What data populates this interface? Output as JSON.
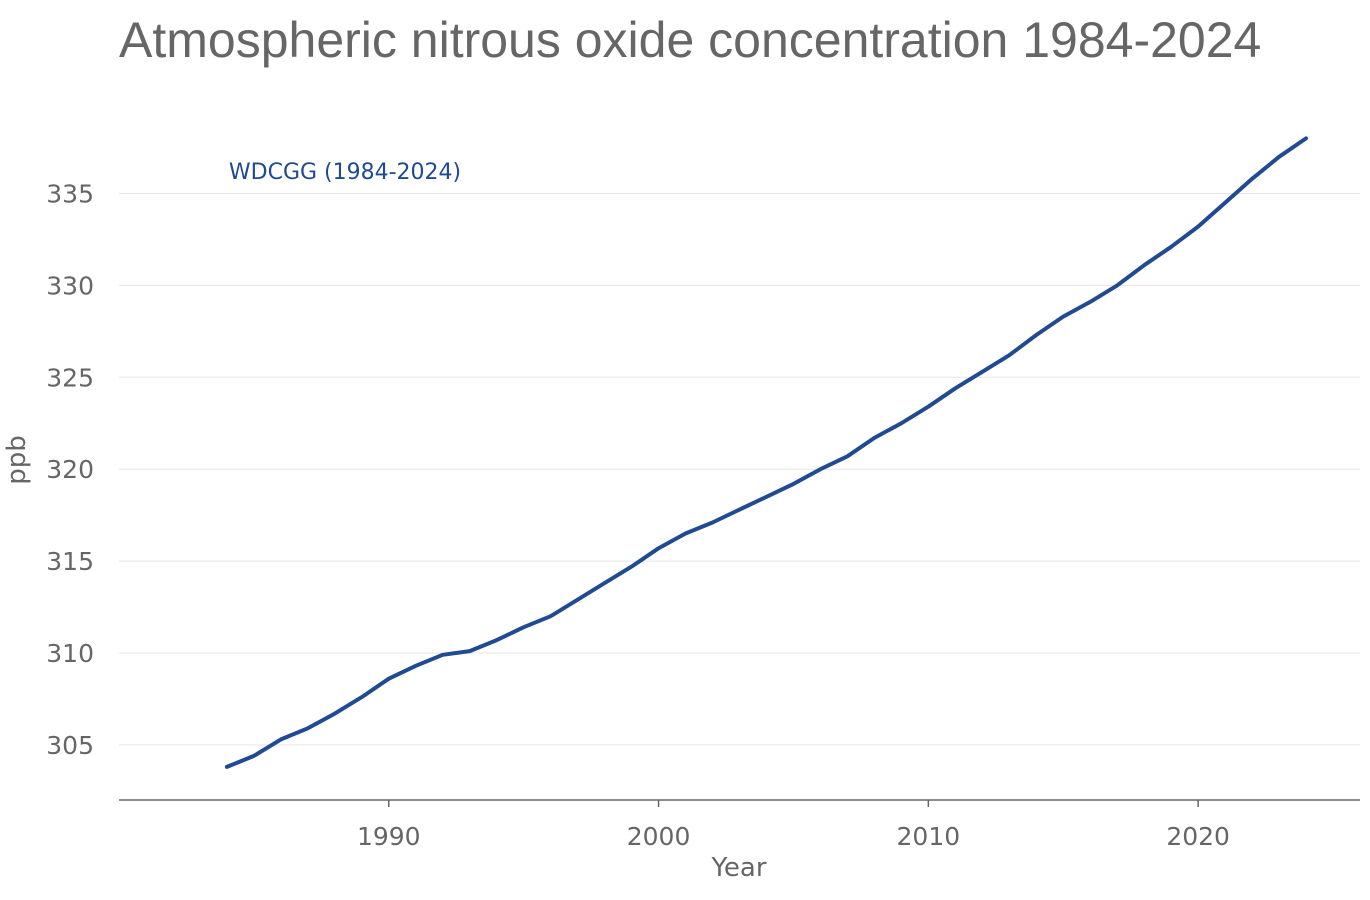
{
  "chart_data": {
    "type": "line",
    "title": "Atmospheric nitrous oxide concentration 1984-2024",
    "xlabel": "Year",
    "ylabel": "ppb",
    "xlim": [
      1980,
      2026
    ],
    "ylim": [
      302,
      339
    ],
    "x_ticks": [
      1990,
      2000,
      2010,
      2020
    ],
    "y_ticks": [
      305,
      310,
      315,
      320,
      325,
      330,
      335
    ],
    "grid": "horizontal",
    "legend": "inline label, top-left",
    "series": [
      {
        "name": "WDCGG (1984-2024)",
        "color": "#204a91",
        "x": [
          1984,
          1985,
          1986,
          1987,
          1988,
          1989,
          1990,
          1991,
          1992,
          1993,
          1994,
          1995,
          1996,
          1997,
          1998,
          1999,
          2000,
          2001,
          2002,
          2003,
          2004,
          2005,
          2006,
          2007,
          2008,
          2009,
          2010,
          2011,
          2012,
          2013,
          2014,
          2015,
          2016,
          2017,
          2018,
          2019,
          2020,
          2021,
          2022,
          2023,
          2024
        ],
        "values": [
          303.8,
          304.4,
          305.3,
          305.9,
          306.7,
          307.6,
          308.6,
          309.3,
          309.9,
          310.1,
          310.7,
          311.4,
          312.0,
          312.9,
          313.8,
          314.7,
          315.7,
          316.5,
          317.1,
          317.8,
          318.5,
          319.2,
          320.0,
          320.7,
          321.7,
          322.5,
          323.4,
          324.4,
          325.3,
          326.2,
          327.3,
          328.3,
          329.1,
          330.0,
          331.1,
          332.1,
          333.2,
          334.5,
          335.8,
          337.0,
          338.0
        ]
      }
    ]
  }
}
